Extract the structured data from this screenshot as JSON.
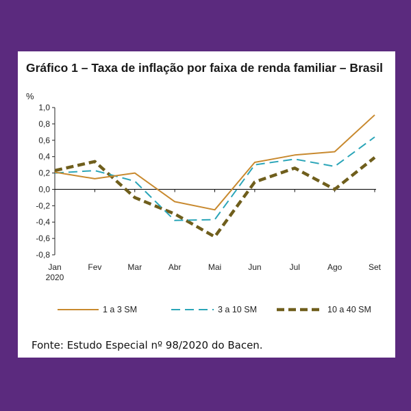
{
  "chart_data": {
    "type": "line",
    "title": "Gráfico 1 – Taxa de inflação por faixa de renda familiar – Brasil",
    "ylabel": "%",
    "xlabel": "",
    "categories": [
      "Jan",
      "Fev",
      "Mar",
      "Abr",
      "Mai",
      "Jun",
      "Jul",
      "Ago",
      "Set"
    ],
    "first_category_sublabel": "2020",
    "yticks": [
      "1,0",
      "0,8",
      "0,6",
      "0,4",
      "0,2",
      "0,0",
      "-0,2",
      "-0,4",
      "-0,6",
      "-0,8"
    ],
    "ylim": [
      -0.8,
      1.0
    ],
    "grid": false,
    "legend_position": "bottom",
    "series": [
      {
        "name": "1 a 3 SM",
        "values": [
          0.21,
          0.13,
          0.2,
          -0.15,
          -0.25,
          0.33,
          0.42,
          0.46,
          0.91
        ],
        "color": "#c8892e",
        "style": "solid"
      },
      {
        "name": "3 a 10 SM",
        "values": [
          0.2,
          0.23,
          0.1,
          -0.38,
          -0.37,
          0.3,
          0.37,
          0.28,
          0.64
        ],
        "color": "#2aa5b8",
        "style": "dashed"
      },
      {
        "name": "10 a 40 SM",
        "values": [
          0.23,
          0.34,
          -0.1,
          -0.3,
          -0.58,
          0.09,
          0.26,
          0.0,
          0.39
        ],
        "color": "#6f5e1c",
        "style": "dashed-bold"
      }
    ]
  },
  "source": "Fonte: Estudo Especial nº 98/2020 do Bacen."
}
